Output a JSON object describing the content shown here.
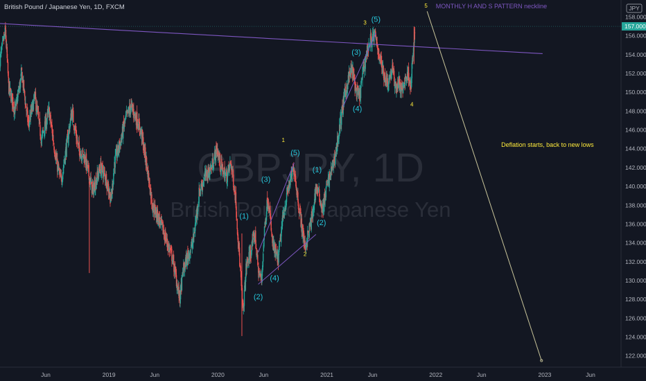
{
  "header": {
    "symbol_title": "British Pound / Japanese Yen, 1D, FXCM"
  },
  "watermark": {
    "ticker": "GBPJPY, 1D",
    "name": "British Pound / Japanese Yen"
  },
  "price_axis": {
    "currency_label": "JPY",
    "last_price_label": "157.000",
    "ticks": [
      "122.000",
      "124.000",
      "126.000",
      "128.000",
      "130.000",
      "132.000",
      "134.000",
      "136.000",
      "138.000",
      "140.000",
      "142.000",
      "144.000",
      "146.000",
      "148.000",
      "150.000",
      "152.000",
      "154.000",
      "156.000",
      "158.000"
    ]
  },
  "time_axis": {
    "ticks": [
      {
        "label": "Jun",
        "t": 2018.42
      },
      {
        "label": "2019",
        "t": 2019.0
      },
      {
        "label": "Jun",
        "t": 2019.42
      },
      {
        "label": "2020",
        "t": 2020.0
      },
      {
        "label": "Jun",
        "t": 2020.42
      },
      {
        "label": "2021",
        "t": 2021.0
      },
      {
        "label": "Jun",
        "t": 2021.42
      },
      {
        "label": "2022",
        "t": 2022.0
      },
      {
        "label": "Jun",
        "t": 2022.42
      },
      {
        "label": "2023",
        "t": 2023.0
      },
      {
        "label": "Jun",
        "t": 2023.42
      }
    ]
  },
  "colors": {
    "background": "#131722",
    "up": "#26a69a",
    "down": "#ef5350",
    "neckline": "#7e57c2",
    "wave_labels": "#26c6da",
    "major_labels": "#ffeb3b",
    "projection": "#c9c59a",
    "last_price_line": "#26a69a"
  },
  "chart_data": {
    "type": "candlestick",
    "x_unit": "year",
    "xlim": [
      2018.0,
      2023.7
    ],
    "ylim": [
      120.8,
      159.8
    ],
    "price_path": [
      [
        2018.0,
        153.5
      ],
      [
        2018.05,
        156.5
      ],
      [
        2018.08,
        150.5
      ],
      [
        2018.14,
        148.0
      ],
      [
        2018.2,
        152.0
      ],
      [
        2018.26,
        146.5
      ],
      [
        2018.32,
        149.5
      ],
      [
        2018.38,
        145.0
      ],
      [
        2018.45,
        148.0
      ],
      [
        2018.52,
        142.5
      ],
      [
        2018.56,
        140.5
      ],
      [
        2018.62,
        145.0
      ],
      [
        2018.66,
        148.0
      ],
      [
        2018.72,
        144.0
      ],
      [
        2018.78,
        143.0
      ],
      [
        2018.85,
        139.5
      ],
      [
        2018.92,
        142.0
      ],
      [
        2018.97,
        141.0
      ],
      [
        2019.02,
        138.5
      ],
      [
        2019.05,
        142.5
      ],
      [
        2019.1,
        144.5
      ],
      [
        2019.15,
        147.0
      ],
      [
        2019.2,
        148.5
      ],
      [
        2019.26,
        147.0
      ],
      [
        2019.3,
        145.5
      ],
      [
        2019.35,
        142.0
      ],
      [
        2019.4,
        138.0
      ],
      [
        2019.46,
        136.5
      ],
      [
        2019.52,
        134.5
      ],
      [
        2019.58,
        132.5
      ],
      [
        2019.62,
        130.0
      ],
      [
        2019.65,
        128.0
      ],
      [
        2019.68,
        131.0
      ],
      [
        2019.72,
        132.5
      ],
      [
        2019.77,
        134.0
      ],
      [
        2019.83,
        139.5
      ],
      [
        2019.88,
        141.0
      ],
      [
        2019.94,
        142.0
      ],
      [
        2019.99,
        144.0
      ],
      [
        2020.03,
        142.0
      ],
      [
        2020.08,
        141.0
      ],
      [
        2020.12,
        142.5
      ],
      [
        2020.16,
        139.0
      ],
      [
        2020.2,
        132.0
      ],
      [
        2020.23,
        126.5
      ],
      [
        2020.26,
        131.5
      ],
      [
        2020.3,
        133.0
      ],
      [
        2020.34,
        135.0
      ],
      [
        2020.37,
        131.0
      ],
      [
        2020.4,
        130.0
      ],
      [
        2020.43,
        136.0
      ],
      [
        2020.46,
        139.0
      ],
      [
        2020.5,
        134.0
      ],
      [
        2020.55,
        132.0
      ],
      [
        2020.6,
        137.0
      ],
      [
        2020.65,
        140.0
      ],
      [
        2020.7,
        142.0
      ],
      [
        2020.73,
        139.0
      ],
      [
        2020.76,
        136.5
      ],
      [
        2020.8,
        133.5
      ],
      [
        2020.84,
        135.5
      ],
      [
        2020.87,
        137.0
      ],
      [
        2020.9,
        140.0
      ],
      [
        2020.93,
        139.0
      ],
      [
        2020.96,
        137.5
      ],
      [
        2021.0,
        140.0
      ],
      [
        2021.05,
        142.0
      ],
      [
        2021.08,
        143.5
      ],
      [
        2021.12,
        146.5
      ],
      [
        2021.16,
        149.5
      ],
      [
        2021.2,
        151.5
      ],
      [
        2021.23,
        152.5
      ],
      [
        2021.27,
        150.0
      ],
      [
        2021.3,
        149.5
      ],
      [
        2021.33,
        152.0
      ],
      [
        2021.36,
        154.0
      ],
      [
        2021.4,
        155.5
      ],
      [
        2021.44,
        156.0
      ],
      [
        2021.48,
        154.0
      ],
      [
        2021.52,
        152.0
      ],
      [
        2021.56,
        151.0
      ],
      [
        2021.6,
        152.5
      ],
      [
        2021.63,
        150.5
      ],
      [
        2021.66,
        151.0
      ],
      [
        2021.69,
        150.0
      ],
      [
        2021.72,
        151.5
      ],
      [
        2021.75,
        152.0
      ],
      [
        2021.77,
        150.5
      ],
      [
        2021.79,
        154.0
      ],
      [
        2021.81,
        156.5
      ]
    ],
    "last_price": 157.0,
    "neckline": [
      [
        2018.0,
        157.3
      ],
      [
        2022.98,
        154.1
      ]
    ],
    "lines": [
      {
        "name": "wave-channel-1",
        "points": [
          [
            2020.37,
            133.0
          ],
          [
            2020.7,
            142.5
          ]
        ]
      },
      {
        "name": "wave-channel-2",
        "points": [
          [
            2020.37,
            129.6
          ],
          [
            2020.9,
            134.9
          ]
        ]
      },
      {
        "name": "wave-channel-3",
        "points": [
          [
            2021.15,
            148.5
          ],
          [
            2021.45,
            156.3
          ]
        ]
      },
      {
        "name": "projection",
        "points": [
          [
            2021.92,
            158.6
          ],
          [
            2022.97,
            121.5
          ]
        ]
      }
    ],
    "wave_labels": [
      {
        "text": "(1)",
        "t": 2020.24,
        "p": 136.6
      },
      {
        "text": "(2)",
        "t": 2020.37,
        "p": 128.0
      },
      {
        "text": "(3)",
        "t": 2020.44,
        "p": 140.5
      },
      {
        "text": "(4)",
        "t": 2020.52,
        "p": 130.0
      },
      {
        "text": "(5)",
        "t": 2020.71,
        "p": 143.3
      },
      {
        "text": "(1)",
        "t": 2020.91,
        "p": 141.5
      },
      {
        "text": "(2)",
        "t": 2020.95,
        "p": 135.9
      },
      {
        "text": "(3)",
        "t": 2021.27,
        "p": 154.0
      },
      {
        "text": "(4)",
        "t": 2021.28,
        "p": 148.0
      },
      {
        "text": "(5)",
        "t": 2021.45,
        "p": 157.5
      }
    ],
    "major_labels": [
      {
        "text": "1",
        "t": 2020.6,
        "p": 144.7
      },
      {
        "text": "2",
        "t": 2020.8,
        "p": 132.6
      },
      {
        "text": "3",
        "t": 2021.35,
        "p": 157.2
      },
      {
        "text": "4",
        "t": 2021.78,
        "p": 148.5
      },
      {
        "text": "5",
        "t": 2021.91,
        "p": 159.0
      }
    ],
    "annotations": [
      {
        "name": "neckline-annotation",
        "text": "MONTHLY H AND S PATTERN neckline",
        "t": 2022.0,
        "p": 158.9,
        "color": "#7e57c2"
      },
      {
        "name": "deflation-annotation",
        "text": "Deflation starts, back to new lows",
        "t": 2022.6,
        "p": 144.2,
        "color": "#ffeb3b"
      }
    ]
  }
}
